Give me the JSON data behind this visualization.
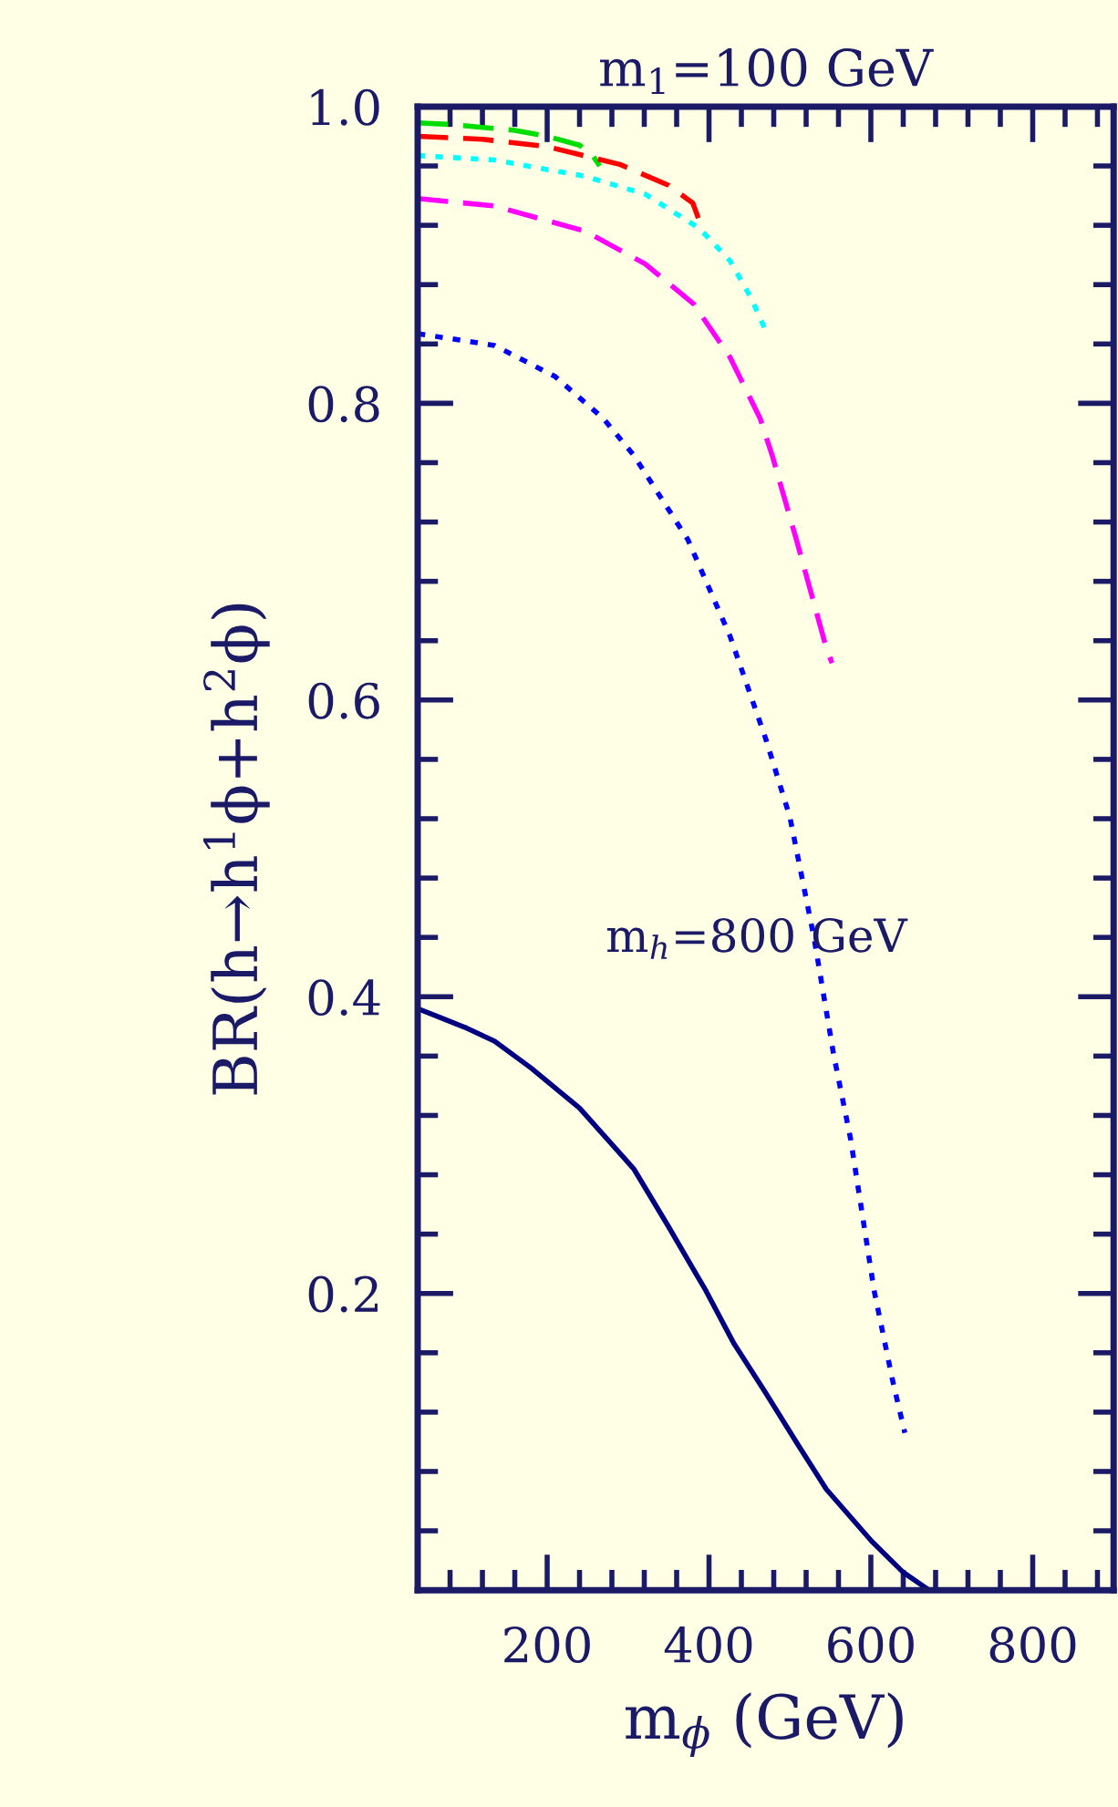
{
  "chart_data": {
    "type": "line",
    "title": "m$_{1}$=100 GeV",
    "xlabel": "m$_{ϕ}$ (GeV)",
    "ylabel": "BR(h→h$^{1}$ϕ+h$^{2}$ϕ)",
    "annotations": [
      "m$_{h}$=800 GeV"
    ],
    "xlim": [
      40,
      900
    ],
    "xticks": [
      200,
      400,
      600,
      800
    ],
    "ylim": [
      0,
      1
    ],
    "yticks": [
      {
        "value": 0.2,
        "label": "0.2"
      },
      {
        "value": 0.4,
        "label": "0.4"
      },
      {
        "value": 0.6,
        "label": "0.6"
      },
      {
        "value": 0.8,
        "label": "0.8"
      },
      {
        "value": 1,
        "label": "1.0"
      }
    ],
    "series": [
      {
        "color": "#00dd00",
        "line_style": "dashed",
        "x": [
          40,
          80,
          120,
          160,
          200,
          240,
          255,
          265
        ],
        "values": [
          0.989,
          0.988,
          0.986,
          0.984,
          0.98,
          0.974,
          0.968,
          0.96
        ]
      },
      {
        "color": "#ff0000",
        "line_style": "dashed",
        "x": [
          40,
          120,
          200,
          290,
          350,
          380,
          390
        ],
        "values": [
          0.98,
          0.978,
          0.973,
          0.961,
          0.947,
          0.935,
          0.92
        ]
      },
      {
        "color": "#00ffff",
        "line_style": "dotted",
        "x": [
          40,
          135,
          247,
          321,
          388,
          426,
          452,
          470
        ],
        "values": [
          0.967,
          0.964,
          0.953,
          0.941,
          0.918,
          0.896,
          0.871,
          0.849
        ]
      },
      {
        "color": "#ff00ff",
        "line_style": "dashed",
        "x": [
          40,
          135,
          247,
          321,
          381,
          426,
          463,
          478,
          508,
          545,
          552
        ],
        "values": [
          0.938,
          0.933,
          0.916,
          0.894,
          0.867,
          0.831,
          0.79,
          0.765,
          0.708,
          0.635,
          0.625
        ]
      },
      {
        "color": "#0000ff",
        "line_style": "dotted",
        "x": [
          40,
          135,
          210,
          269,
          307,
          374,
          426,
          470,
          500,
          530,
          554,
          575,
          604,
          627,
          642
        ],
        "values": [
          0.847,
          0.839,
          0.818,
          0.79,
          0.765,
          0.708,
          0.643,
          0.574,
          0.521,
          0.439,
          0.361,
          0.304,
          0.202,
          0.141,
          0.106
        ]
      },
      {
        "color": "#000080",
        "line_style": "solid",
        "x": [
          40,
          68,
          100,
          135,
          180,
          240,
          307,
          350,
          396,
          430,
          470,
          510,
          545,
          601,
          640,
          672
        ],
        "values": [
          0.392,
          0.386,
          0.379,
          0.37,
          0.352,
          0.325,
          0.284,
          0.245,
          0.202,
          0.167,
          0.133,
          0.098,
          0.068,
          0.033,
          0.012,
          0.0
        ]
      }
    ]
  }
}
